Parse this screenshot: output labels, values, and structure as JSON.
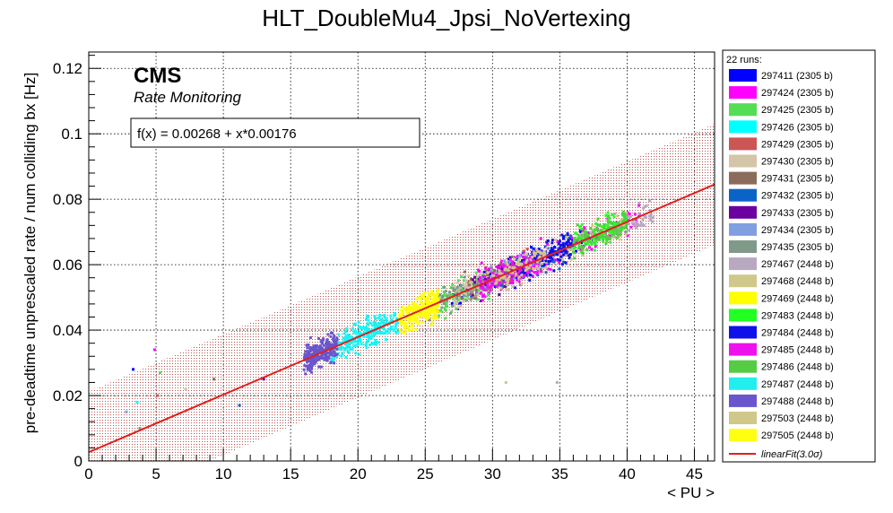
{
  "chart_data": {
    "type": "scatter",
    "title": "HLT_DoubleMu4_Jpsi_NoVertexing",
    "xlabel": "< PU >",
    "ylabel": "pre-deadtime unprescaled rate / num colliding bx [Hz]",
    "xlim": [
      0,
      46.5
    ],
    "ylim": [
      0,
      0.125
    ],
    "x_ticks": [
      "0",
      "5",
      "10",
      "15",
      "20",
      "25",
      "30",
      "35",
      "40",
      "45"
    ],
    "y_ticks": [
      "0",
      "0.02",
      "0.04",
      "0.06",
      "0.08",
      "0.1",
      "0.12"
    ],
    "grid": true,
    "watermark": {
      "label": "CMS",
      "sublabel": "Rate Monitoring"
    },
    "fit": {
      "label": "f(x) = 0.00268 + x*0.00176",
      "intercept": 0.00268,
      "slope": 0.00176,
      "band_halfwidth": 0.0185,
      "color": "#e0201b"
    },
    "legend": {
      "title": "22 runs:",
      "placement": "right",
      "fit_entry": "linearFit(3.0σ)",
      "entries": [
        {
          "label": "297411 (2305 b)",
          "color": "#0000ff",
          "x_range": [
            27,
            38
          ],
          "count": 120
        },
        {
          "label": "297424 (2305 b)",
          "color": "#ff00ff",
          "x_range": [
            28,
            41
          ],
          "count": 160
        },
        {
          "label": "297425 (2305 b)",
          "color": "#55dd55",
          "x_range": [
            26,
            30
          ],
          "count": 120
        },
        {
          "label": "297426 (2305 b)",
          "color": "#00ffff",
          "x_range": [
            19,
            23
          ],
          "count": 130
        },
        {
          "label": "297429 (2305 b)",
          "color": "#cc5555",
          "x_range": [
            28,
            33
          ],
          "count": 60
        },
        {
          "label": "297430 (2305 b)",
          "color": "#d4c4a8",
          "x_range": [
            27,
            34
          ],
          "count": 160
        },
        {
          "label": "297431 (2305 b)",
          "color": "#8b6b5b",
          "x_range": [
            27,
            33
          ],
          "count": 40
        },
        {
          "label": "297432 (2305 b)",
          "color": "#0a64c8",
          "x_range": [
            30,
            36
          ],
          "count": 70
        },
        {
          "label": "297433 (2305 b)",
          "color": "#6a00a0",
          "x_range": [
            28,
            32
          ],
          "count": 50
        },
        {
          "label": "297434 (2305 b)",
          "color": "#7f9fe0",
          "x_range": [
            29,
            34
          ],
          "count": 40
        },
        {
          "label": "297435 (2305 b)",
          "color": "#809a8a",
          "x_range": [
            25,
            29
          ],
          "count": 50
        },
        {
          "label": "297467 (2448 b)",
          "color": "#b8a8c0",
          "x_range": [
            39,
            42
          ],
          "count": 50
        },
        {
          "label": "297468 (2448 b)",
          "color": "#d0c88a",
          "x_range": [
            34,
            40
          ],
          "count": 60
        },
        {
          "label": "297469 (2448 b)",
          "color": "#ffff00",
          "x_range": [
            23,
            26
          ],
          "count": 160
        },
        {
          "label": "297483 (2448 b)",
          "color": "#22ff22",
          "x_range": [
            36,
            40
          ],
          "count": 100
        },
        {
          "label": "297484 (2448 b)",
          "color": "#1010e8",
          "x_range": [
            32,
            36
          ],
          "count": 120
        },
        {
          "label": "297485 (2448 b)",
          "color": "#ee11ee",
          "x_range": [
            29,
            34
          ],
          "count": 160
        },
        {
          "label": "297486 (2448 b)",
          "color": "#55cc44",
          "x_range": [
            36,
            40
          ],
          "count": 100
        },
        {
          "label": "297487 (2448 b)",
          "color": "#22eeee",
          "x_range": [
            18,
            22
          ],
          "count": 110
        },
        {
          "label": "297488 (2448 b)",
          "color": "#6a55cc",
          "x_range": [
            16,
            18.5
          ],
          "count": 240
        },
        {
          "label": "297503 (2448 b)",
          "color": "#d0c888",
          "x_range": [
            30,
            34
          ],
          "count": 80
        },
        {
          "label": "297505 (2448 b)",
          "color": "#ffff11",
          "x_range": [
            24,
            26
          ],
          "count": 90
        }
      ]
    }
  }
}
